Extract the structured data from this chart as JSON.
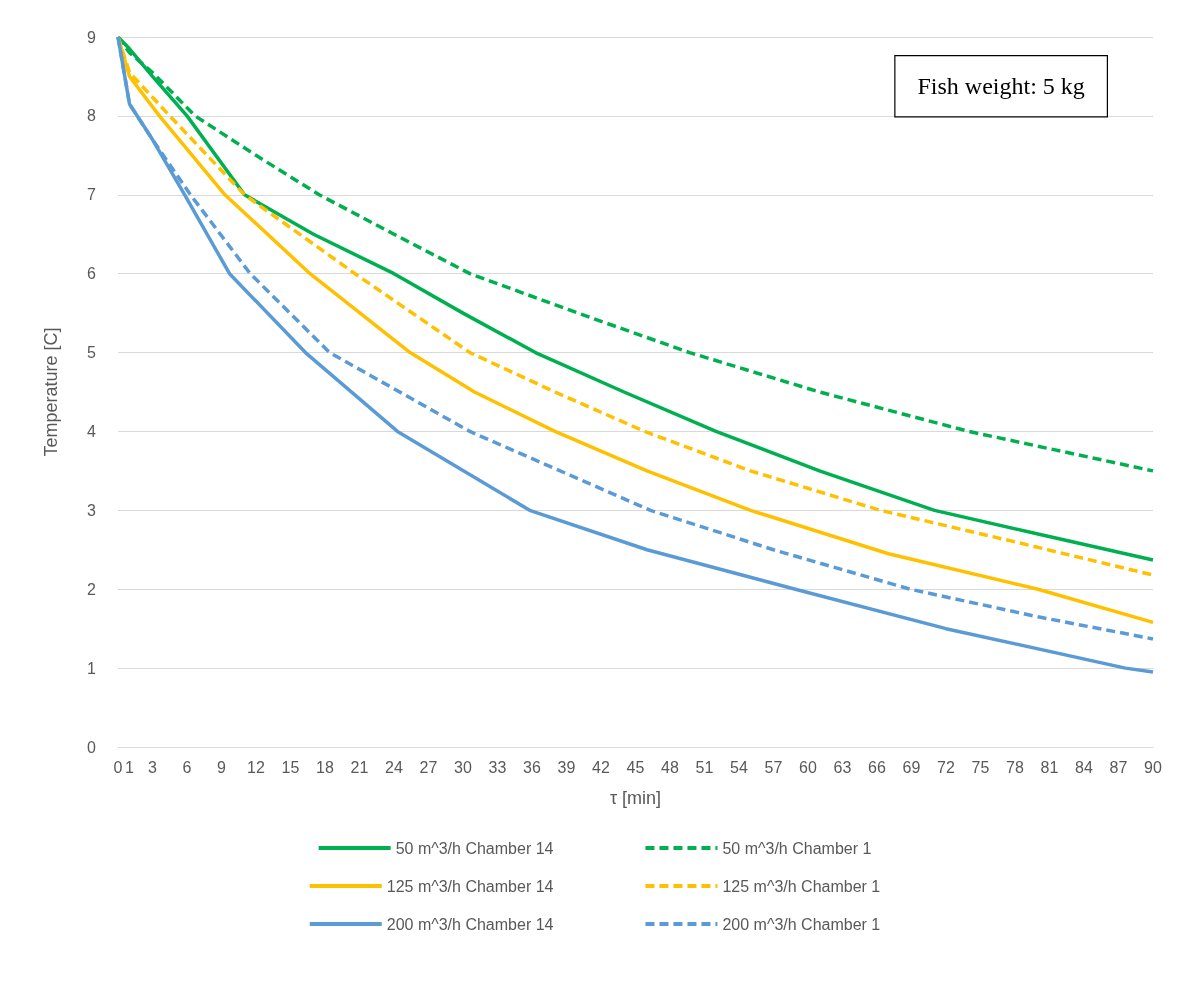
{
  "chart_data": {
    "type": "line",
    "xlabel": "τ [min]",
    "ylabel": "Temperature [C]",
    "annotations": [
      "Fish weight: 5 kg"
    ],
    "xlim": [
      0,
      90
    ],
    "xticks": [
      0,
      1,
      3,
      6,
      9,
      12,
      15,
      18,
      21,
      24,
      27,
      30,
      33,
      36,
      39,
      42,
      45,
      48,
      51,
      54,
      57,
      60,
      63,
      66,
      69,
      72,
      75,
      78,
      81,
      84,
      87,
      90
    ],
    "ylim": [
      0,
      9
    ],
    "yticks": [
      0,
      1,
      2,
      3,
      4,
      5,
      6,
      7,
      8,
      9
    ],
    "grid": "y",
    "legend": "bottom",
    "marker": "none",
    "series": [
      {
        "name": "50 m^3/h Chamber 14",
        "color": "#00b050",
        "line_style": "solid",
        "x": [
          0,
          1,
          3,
          6,
          11,
          17,
          24,
          30,
          36.3,
          44,
          52,
          61,
          71,
          80,
          90
        ],
        "values": [
          9,
          8.85,
          8.5,
          8.0,
          7.0,
          6.5,
          6.0,
          5.5,
          5.0,
          4.5,
          4.0,
          3.5,
          3.0,
          2.7,
          2.37
        ]
      },
      {
        "name": "50 m^3/h Chamber 1",
        "color": "#00b050",
        "line_style": "dashed",
        "x": [
          0,
          1,
          3,
          6.7,
          12,
          17.5,
          24,
          30.6,
          40,
          49.7,
          61,
          74,
          82,
          90
        ],
        "values": [
          9,
          8.8,
          8.55,
          8.0,
          7.5,
          7.0,
          6.5,
          6.0,
          5.5,
          5.0,
          4.5,
          4.0,
          3.75,
          3.5
        ]
      },
      {
        "name": "125 m^3/h Chamber 14",
        "color": "#ffc000",
        "line_style": "solid",
        "x": [
          0,
          1,
          3.6,
          9.3,
          16.7,
          25.4,
          31,
          38,
          46,
          55,
          67,
          80,
          90
        ],
        "values": [
          9,
          8.5,
          8.0,
          7.0,
          6.0,
          5.0,
          4.5,
          4.0,
          3.5,
          3.0,
          2.45,
          2.0,
          1.58
        ]
      },
      {
        "name": "125 m^3/h Chamber 1",
        "color": "#ffc000",
        "line_style": "dashed",
        "x": [
          0,
          1,
          4.5,
          11,
          20.6,
          30.6,
          38,
          45.8,
          55,
          66.3,
          78,
          90
        ],
        "values": [
          9,
          8.55,
          8.0,
          7.0,
          6.0,
          5.0,
          4.5,
          4.0,
          3.5,
          3.0,
          2.6,
          2.18
        ]
      },
      {
        "name": "200 m^3/h Chamber 14",
        "color": "#5b9bd5",
        "line_style": "solid",
        "x": [
          0,
          1,
          3,
          5.8,
          9.7,
          16.3,
          24.3,
          35.8,
          46,
          58.9,
          72,
          87.6,
          90
        ],
        "values": [
          9,
          8.15,
          7.7,
          7.0,
          6.0,
          5.0,
          4.0,
          3.0,
          2.5,
          2.0,
          1.5,
          1.0,
          0.95
        ]
      },
      {
        "name": "200 m^3/h Chamber 1",
        "color": "#5b9bd5",
        "line_style": "dashed",
        "x": [
          0,
          1,
          3,
          6.3,
          11.5,
          18.4,
          30.6,
          46.3,
          57,
          68.9,
          80,
          90
        ],
        "values": [
          9,
          8.15,
          7.7,
          7.0,
          6.0,
          5.0,
          4.0,
          3.0,
          2.5,
          2.0,
          1.65,
          1.37
        ]
      }
    ]
  }
}
